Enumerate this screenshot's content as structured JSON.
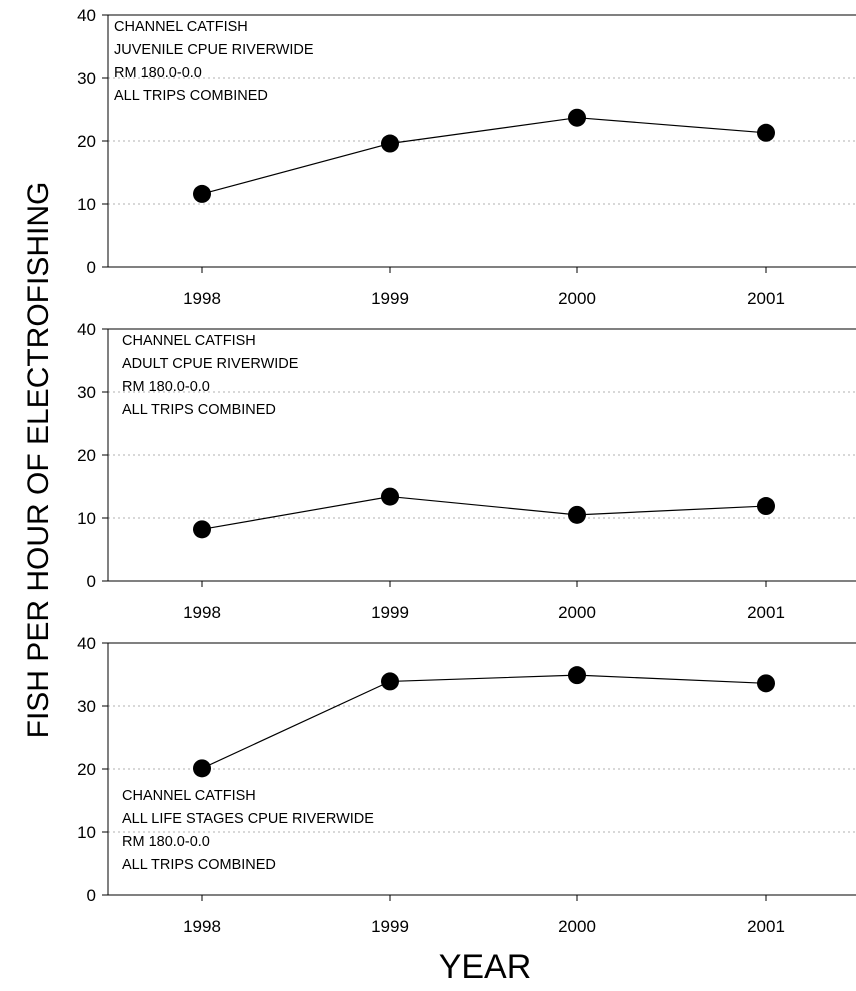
{
  "ylabel": "FISH PER HOUR OF ELECTROFISHING",
  "xlabel": "YEAR",
  "chart_data": [
    {
      "type": "line",
      "x": [
        "1998",
        "1999",
        "2000",
        "2001"
      ],
      "values": [
        11.6,
        19.6,
        23.7,
        21.3
      ],
      "ylim": [
        0,
        40
      ],
      "yticks": [
        "0",
        "10",
        "20",
        "30",
        "40"
      ],
      "grid": true,
      "annotation": [
        "CHANNEL CATFISH",
        "JUVENILE CPUE RIVERWIDE",
        "RM 180.0-0.0",
        "ALL TRIPS COMBINED"
      ],
      "annotation_position": "top-left"
    },
    {
      "type": "line",
      "x": [
        "1998",
        "1999",
        "2000",
        "2001"
      ],
      "values": [
        8.2,
        13.4,
        10.5,
        11.9
      ],
      "ylim": [
        0,
        40
      ],
      "yticks": [
        "0",
        "10",
        "20",
        "30",
        "40"
      ],
      "grid": true,
      "annotation": [
        "CHANNEL CATFISH",
        "ADULT CPUE RIVERWIDE",
        "RM 180.0-0.0",
        "ALL TRIPS COMBINED"
      ],
      "annotation_position": "top-left"
    },
    {
      "type": "line",
      "x": [
        "1998",
        "1999",
        "2000",
        "2001"
      ],
      "values": [
        20.1,
        33.9,
        34.9,
        33.6
      ],
      "ylim": [
        0,
        40
      ],
      "yticks": [
        "0",
        "10",
        "20",
        "30",
        "40"
      ],
      "grid": true,
      "annotation": [
        "CHANNEL CATFISH",
        "ALL LIFE STAGES CPUE RIVERWIDE",
        "RM 180.0-0.0",
        "ALL TRIPS COMBINED"
      ],
      "annotation_position": "bottom-left"
    }
  ]
}
